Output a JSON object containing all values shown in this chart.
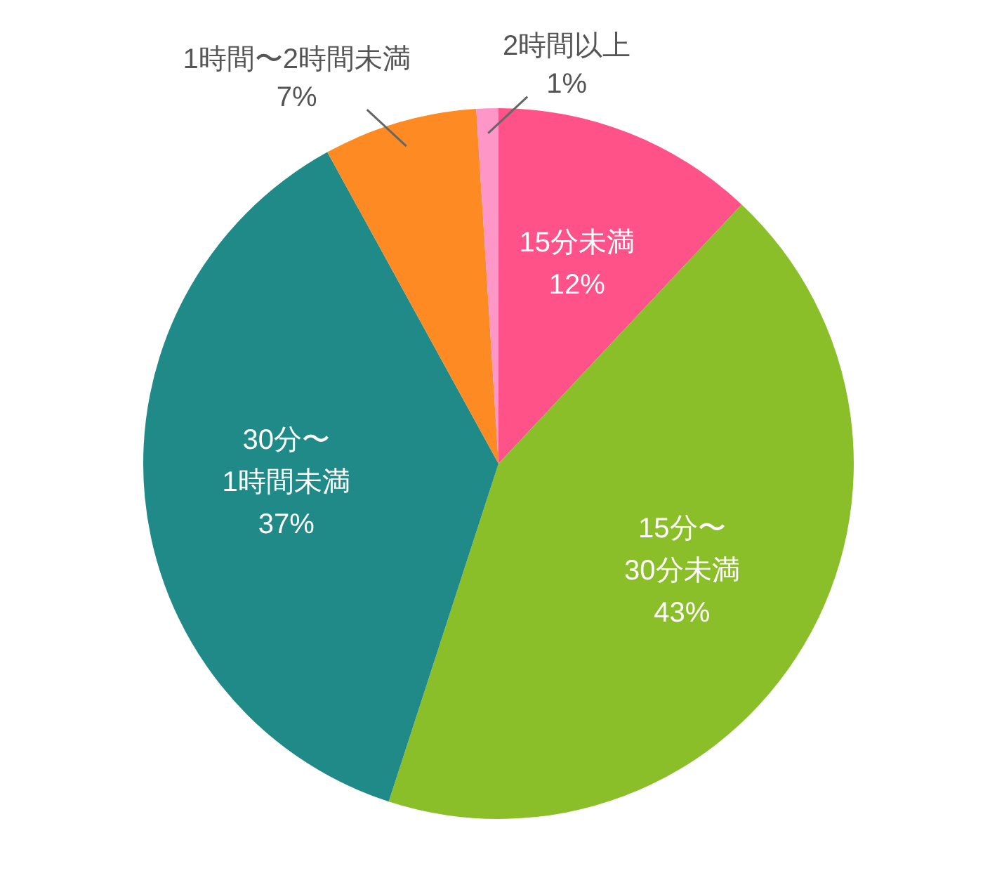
{
  "chart_data": {
    "type": "pie",
    "categories": [
      "15分未満",
      "15分〜\n30分未満",
      "30分〜\n1時間未満",
      "1時間〜2時間未満",
      "2時間以上"
    ],
    "values": [
      12,
      43,
      37,
      7,
      1
    ],
    "colors": [
      "#fe5288",
      "#8bbf2a",
      "#1f8a87",
      "#fd8a22",
      "#fe96c8"
    ],
    "value_labels": [
      "12%",
      "43%",
      "37%",
      "7%",
      "1%"
    ]
  }
}
